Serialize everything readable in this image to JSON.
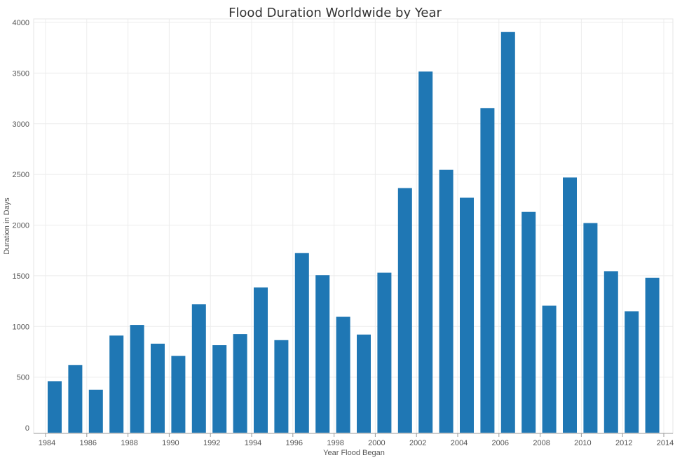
{
  "chart_data": {
    "type": "bar",
    "title": "Flood Duration Worldwide by Year",
    "xlabel": "Year Flood Began",
    "ylabel": "Duration in Days",
    "ylim": [
      0,
      4000
    ],
    "yticks": [
      "0",
      "500",
      "1000",
      "1500",
      "2000",
      "2500",
      "3000",
      "3500",
      "4000"
    ],
    "ytick_values": [
      0,
      500,
      1000,
      1500,
      2000,
      2500,
      3000,
      3500,
      4000
    ],
    "xtick_labels": [
      "1984",
      "1986",
      "1988",
      "1990",
      "1992",
      "1994",
      "1996",
      "1998",
      "2000",
      "2002",
      "2004",
      "2006",
      "2008",
      "2010",
      "2012",
      "2014"
    ],
    "categories": [
      1984,
      1985,
      1986,
      1987,
      1988,
      1989,
      1990,
      1991,
      1992,
      1993,
      1994,
      1995,
      1996,
      1997,
      1998,
      1999,
      2000,
      2001,
      2002,
      2003,
      2004,
      2005,
      2006,
      2007,
      2008,
      2009,
      2010,
      2011,
      2012,
      2013,
      2014
    ],
    "values": [
      460,
      620,
      375,
      910,
      1015,
      830,
      710,
      1220,
      815,
      925,
      1385,
      865,
      1725,
      1505,
      1095,
      920,
      1530,
      2365,
      3515,
      2545,
      2270,
      3155,
      3905,
      2130,
      1205,
      2470,
      2020,
      1545,
      1150,
      1480,
      null
    ],
    "bar_color": "#1f77b4",
    "grid": true
  }
}
